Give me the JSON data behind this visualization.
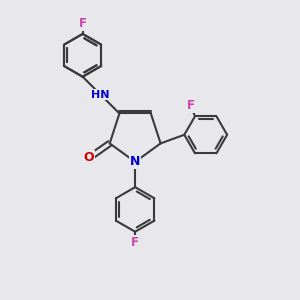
{
  "background_color": "#e8e8ec",
  "bond_color": "#3a3a3a",
  "bond_width": 1.5,
  "atom_colors": {
    "N": "#0000cc",
    "O": "#cc0000",
    "F": "#cc44aa",
    "C": "#3a3a3a"
  },
  "figsize": [
    3.0,
    3.0
  ],
  "dpi": 100,
  "xlim": [
    0,
    10
  ],
  "ylim": [
    0,
    10
  ]
}
